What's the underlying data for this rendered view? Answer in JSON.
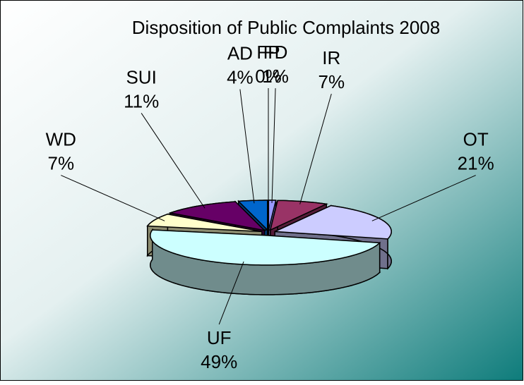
{
  "chart_data": {
    "type": "pie",
    "title": "Disposition of Public Complaints 2008",
    "categories": [
      "FP",
      "FD",
      "IR",
      "OT",
      "UF",
      "WD",
      "SUI",
      "AD"
    ],
    "values": [
      0,
      1,
      7,
      21,
      49,
      7,
      11,
      4
    ],
    "value_labels": [
      "0%",
      "1%",
      "7%",
      "21%",
      "49%",
      "7%",
      "11%",
      "4%"
    ],
    "colors": [
      "#ccccff",
      "#9999ff",
      "#993366",
      "#ccccff",
      "#ccffff",
      "#ffffcc",
      "#660066",
      "#0066cc"
    ]
  }
}
